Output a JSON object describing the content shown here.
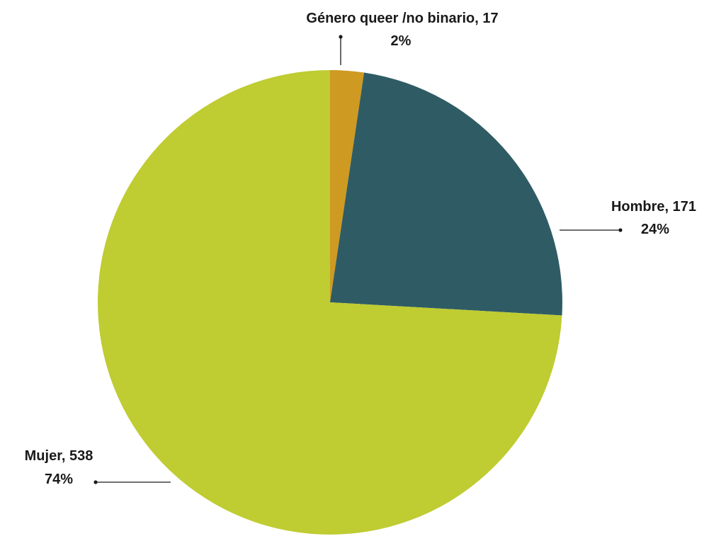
{
  "chart_data": {
    "type": "pie",
    "slices": [
      {
        "label": "Género queer /no binario",
        "value": 17,
        "percent_label": "2%",
        "color": "#CF9A22"
      },
      {
        "label": "Hombre",
        "value": 171,
        "percent_label": "24%",
        "color": "#2F5C64"
      },
      {
        "label": "Mujer",
        "value": 538,
        "percent_label": "74%",
        "color": "#BFCC32"
      }
    ],
    "start_angle_deg": 0,
    "direction": "clockwise",
    "legend": "none",
    "data_labels": "outside-with-leader-lines"
  }
}
